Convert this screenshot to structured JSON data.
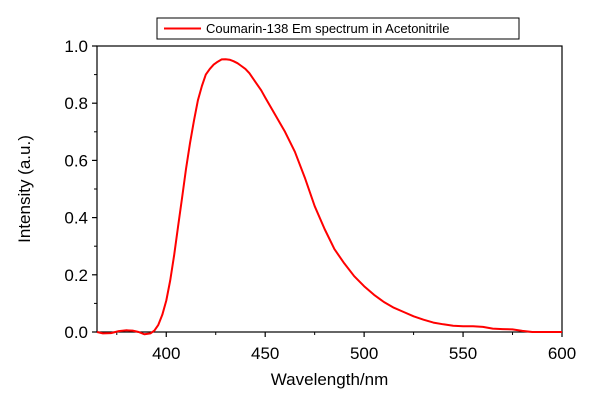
{
  "chart_data": {
    "type": "line",
    "xlabel": "Wavelength/nm",
    "ylabel": "Intensity (a.u.)",
    "xlim": [
      365,
      600
    ],
    "ylim": [
      0,
      1.0
    ],
    "x_ticks": [
      "400",
      "450",
      "500",
      "550",
      "600"
    ],
    "y_ticks": [
      "0.0",
      "0.2",
      "0.4",
      "0.6",
      "0.8",
      "1.0"
    ],
    "grid": false,
    "legend_position": "top-center",
    "series": [
      {
        "name": "Coumarin-138 Em spectrum in Acetonitrile",
        "color": "#ff0000",
        "x": [
          365,
          368,
          372,
          376,
          380,
          383,
          386,
          389,
          392,
          394,
          396,
          398,
          400,
          402,
          404,
          406,
          408,
          410,
          412,
          414,
          416,
          418,
          420,
          422,
          424,
          426,
          428,
          430,
          432,
          434,
          436,
          438,
          440,
          442,
          445,
          448,
          450,
          455,
          460,
          465,
          470,
          475,
          480,
          485,
          490,
          495,
          500,
          505,
          510,
          515,
          520,
          525,
          530,
          535,
          540,
          545,
          550,
          555,
          560,
          565,
          570,
          575,
          580,
          585,
          590,
          595,
          600
        ],
        "y": [
          0.0,
          -0.005,
          -0.004,
          0.003,
          0.006,
          0.005,
          0.0,
          -0.008,
          -0.005,
          0.005,
          0.025,
          0.06,
          0.11,
          0.18,
          0.27,
          0.37,
          0.47,
          0.57,
          0.66,
          0.74,
          0.81,
          0.86,
          0.9,
          0.92,
          0.935,
          0.945,
          0.953,
          0.954,
          0.952,
          0.947,
          0.94,
          0.93,
          0.92,
          0.905,
          0.875,
          0.845,
          0.82,
          0.76,
          0.7,
          0.63,
          0.54,
          0.44,
          0.36,
          0.29,
          0.24,
          0.195,
          0.16,
          0.13,
          0.105,
          0.085,
          0.07,
          0.055,
          0.043,
          0.033,
          0.027,
          0.022,
          0.02,
          0.02,
          0.018,
          0.012,
          0.01,
          0.009,
          0.004,
          0.0,
          0.0,
          0.0,
          0.0
        ]
      }
    ]
  }
}
